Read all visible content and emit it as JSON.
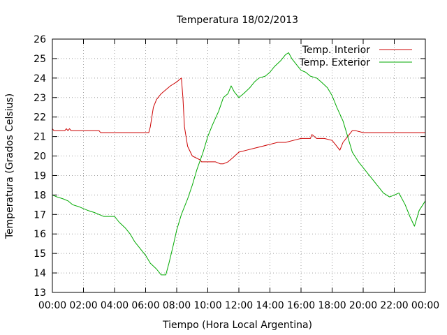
{
  "chart_data": {
    "type": "line",
    "title": "Temperatura 18/02/2013",
    "xlabel": "Tiempo (Hora Local Argentina)",
    "ylabel": "Temperatura (Grados Celsius)",
    "xlim": [
      0,
      24
    ],
    "ylim": [
      13,
      26
    ],
    "grid": true,
    "legend_position": "top-right",
    "x_ticks": [
      {
        "value": 0,
        "label": "00:00"
      },
      {
        "value": 2,
        "label": "02:00"
      },
      {
        "value": 4,
        "label": "04:00"
      },
      {
        "value": 6,
        "label": "06:00"
      },
      {
        "value": 8,
        "label": "08:00"
      },
      {
        "value": 10,
        "label": "10:00"
      },
      {
        "value": 12,
        "label": "12:00"
      },
      {
        "value": 14,
        "label": "14:00"
      },
      {
        "value": 16,
        "label": "16:00"
      },
      {
        "value": 18,
        "label": "18:00"
      },
      {
        "value": 20,
        "label": "20:00"
      },
      {
        "value": 22,
        "label": "22:00"
      },
      {
        "value": 24,
        "label": "00:00"
      }
    ],
    "y_ticks": [
      13,
      14,
      15,
      16,
      17,
      18,
      19,
      20,
      21,
      22,
      23,
      24,
      25,
      26
    ],
    "series": [
      {
        "name": "Temp. Interior",
        "color": "#cc0000",
        "x": [
          0,
          0.1,
          0.5,
          0.8,
          0.9,
          1.0,
          1.1,
          1.2,
          1.5,
          2.0,
          2.5,
          3.0,
          3.1,
          3.5,
          4.0,
          5.0,
          6.0,
          6.2,
          6.3,
          6.4,
          6.5,
          6.7,
          7.0,
          7.3,
          7.6,
          8.0,
          8.3,
          8.4,
          8.5,
          8.7,
          9.0,
          9.5,
          9.6,
          10.0,
          10.3,
          10.5,
          10.8,
          11.0,
          11.3,
          11.6,
          12.0,
          12.5,
          13.0,
          13.5,
          14.0,
          14.5,
          15.0,
          15.5,
          16.0,
          16.2,
          16.6,
          16.7,
          17.0,
          17.5,
          18.0,
          18.3,
          18.5,
          18.7,
          19.0,
          19.3,
          19.5,
          20.0,
          22.0,
          24.0
        ],
        "y": [
          21.4,
          21.3,
          21.3,
          21.3,
          21.4,
          21.3,
          21.4,
          21.3,
          21.3,
          21.3,
          21.3,
          21.3,
          21.2,
          21.2,
          21.2,
          21.2,
          21.2,
          21.2,
          21.5,
          22.0,
          22.5,
          22.9,
          23.2,
          23.4,
          23.6,
          23.8,
          24.0,
          23.0,
          21.5,
          20.5,
          20.0,
          19.8,
          19.7,
          19.7,
          19.7,
          19.7,
          19.6,
          19.6,
          19.7,
          19.9,
          20.2,
          20.3,
          20.4,
          20.5,
          20.6,
          20.7,
          20.7,
          20.8,
          20.9,
          20.9,
          20.9,
          21.1,
          20.9,
          20.9,
          20.8,
          20.5,
          20.3,
          20.7,
          21.0,
          21.3,
          21.3,
          21.2,
          21.2,
          21.2
        ]
      },
      {
        "name": "Temp. Exterior",
        "color": "#00aa00",
        "x": [
          0,
          0.3,
          0.7,
          1.0,
          1.3,
          1.7,
          2.0,
          2.3,
          2.7,
          3.0,
          3.3,
          3.7,
          4.0,
          4.3,
          4.7,
          5.0,
          5.3,
          5.7,
          6.0,
          6.3,
          6.7,
          7.0,
          7.3,
          7.5,
          7.8,
          8.0,
          8.3,
          8.7,
          9.0,
          9.3,
          9.7,
          10.0,
          10.3,
          10.7,
          11.0,
          11.3,
          11.5,
          11.7,
          12.0,
          12.3,
          12.7,
          13.0,
          13.3,
          13.7,
          14.0,
          14.3,
          14.7,
          15.0,
          15.2,
          15.4,
          15.7,
          16.0,
          16.3,
          16.6,
          17.0,
          17.3,
          17.7,
          18.0,
          18.3,
          18.7,
          19.0,
          19.3,
          19.7,
          20.0,
          20.3,
          20.7,
          21.0,
          21.3,
          21.7,
          22.0,
          22.3,
          22.7,
          23.0,
          23.3,
          23.6,
          24.0
        ],
        "y": [
          18.0,
          17.9,
          17.8,
          17.7,
          17.5,
          17.4,
          17.3,
          17.2,
          17.1,
          17.0,
          16.9,
          16.9,
          16.9,
          16.6,
          16.3,
          16.0,
          15.6,
          15.2,
          14.9,
          14.5,
          14.2,
          13.9,
          13.9,
          14.5,
          15.5,
          16.2,
          17.0,
          17.8,
          18.5,
          19.3,
          20.2,
          21.0,
          21.6,
          22.3,
          23.0,
          23.2,
          23.6,
          23.3,
          23.0,
          23.2,
          23.5,
          23.8,
          24.0,
          24.1,
          24.3,
          24.6,
          24.9,
          25.2,
          25.3,
          25.0,
          24.7,
          24.4,
          24.3,
          24.1,
          24.0,
          23.8,
          23.5,
          23.1,
          22.5,
          21.8,
          21.0,
          20.2,
          19.7,
          19.4,
          19.1,
          18.7,
          18.4,
          18.1,
          17.9,
          18.0,
          18.1,
          17.5,
          16.9,
          16.4,
          17.2,
          17.7
        ]
      }
    ]
  }
}
